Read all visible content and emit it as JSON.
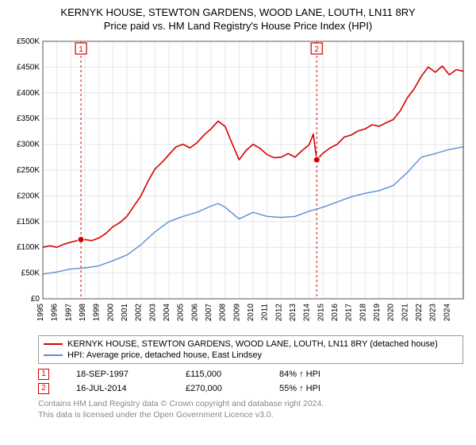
{
  "title_line1": "KERNYK HOUSE, STEWTON GARDENS, WOOD LANE, LOUTH, LN11 8RY",
  "title_line2": "Price paid vs. HM Land Registry's House Price Index (HPI)",
  "chart": {
    "type": "line",
    "plot_bg": "#ffffff",
    "grid_color": "#e6e6e6",
    "axis_color": "#333333",
    "tick_font_size": 10,
    "x": {
      "min": 1995,
      "max": 2025,
      "ticks": [
        1995,
        1996,
        1997,
        1998,
        1999,
        2000,
        2001,
        2002,
        2003,
        2004,
        2005,
        2006,
        2007,
        2008,
        2009,
        2010,
        2011,
        2012,
        2013,
        2014,
        2015,
        2016,
        2017,
        2018,
        2019,
        2020,
        2021,
        2022,
        2023,
        2024
      ],
      "label_rotation": -90
    },
    "y": {
      "min": 0,
      "max": 500,
      "ticks": [
        0,
        50,
        100,
        150,
        200,
        250,
        300,
        350,
        400,
        450,
        500
      ],
      "tick_labels": [
        "£0",
        "£50K",
        "£100K",
        "£150K",
        "£200K",
        "£250K",
        "£300K",
        "£350K",
        "£400K",
        "£450K",
        "£500K"
      ]
    },
    "annotations": [
      {
        "n": "1",
        "year": 1997.72,
        "color": "#d40000",
        "line_dash": "3,3"
      },
      {
        "n": "2",
        "year": 2014.54,
        "color": "#d40000",
        "line_dash": "3,3"
      }
    ],
    "series": [
      {
        "id": "property",
        "label": "KERNYK HOUSE, STEWTON GARDENS, WOOD LANE, LOUTH, LN11 8RY (detached house)",
        "color": "#d40000",
        "width": 1.6,
        "points": [
          [
            1995.0,
            100
          ],
          [
            1995.5,
            103
          ],
          [
            1996.0,
            100
          ],
          [
            1996.5,
            106
          ],
          [
            1997.0,
            110
          ],
          [
            1997.72,
            115
          ],
          [
            1998.0,
            115
          ],
          [
            1998.5,
            113
          ],
          [
            1999.0,
            118
          ],
          [
            1999.5,
            127
          ],
          [
            2000.0,
            140
          ],
          [
            2000.5,
            148
          ],
          [
            2001.0,
            160
          ],
          [
            2001.5,
            180
          ],
          [
            2002.0,
            200
          ],
          [
            2002.5,
            228
          ],
          [
            2003.0,
            252
          ],
          [
            2003.5,
            265
          ],
          [
            2004.0,
            280
          ],
          [
            2004.5,
            295
          ],
          [
            2005.0,
            300
          ],
          [
            2005.5,
            293
          ],
          [
            2006.0,
            303
          ],
          [
            2006.5,
            318
          ],
          [
            2007.0,
            330
          ],
          [
            2007.5,
            345
          ],
          [
            2008.0,
            335
          ],
          [
            2008.5,
            302
          ],
          [
            2009.0,
            270
          ],
          [
            2009.5,
            288
          ],
          [
            2010.0,
            300
          ],
          [
            2010.5,
            292
          ],
          [
            2011.0,
            280
          ],
          [
            2011.5,
            274
          ],
          [
            2012.0,
            275
          ],
          [
            2012.5,
            282
          ],
          [
            2013.0,
            275
          ],
          [
            2013.5,
            288
          ],
          [
            2014.0,
            299
          ],
          [
            2014.3,
            320
          ],
          [
            2014.54,
            270
          ],
          [
            2015.0,
            283
          ],
          [
            2015.5,
            293
          ],
          [
            2016.0,
            300
          ],
          [
            2016.5,
            314
          ],
          [
            2017.0,
            318
          ],
          [
            2017.5,
            326
          ],
          [
            2018.0,
            330
          ],
          [
            2018.5,
            338
          ],
          [
            2019.0,
            335
          ],
          [
            2019.5,
            342
          ],
          [
            2020.0,
            348
          ],
          [
            2020.5,
            365
          ],
          [
            2021.0,
            390
          ],
          [
            2021.5,
            408
          ],
          [
            2022.0,
            432
          ],
          [
            2022.5,
            450
          ],
          [
            2023.0,
            440
          ],
          [
            2023.5,
            452
          ],
          [
            2024.0,
            435
          ],
          [
            2024.5,
            445
          ],
          [
            2025.0,
            442
          ]
        ]
      },
      {
        "id": "hpi",
        "label": "HPI: Average price, detached house, East Lindsey",
        "color": "#5a8fd6",
        "width": 1.4,
        "points": [
          [
            1995.0,
            48
          ],
          [
            1996.0,
            52
          ],
          [
            1997.0,
            58
          ],
          [
            1998.0,
            60
          ],
          [
            1999.0,
            64
          ],
          [
            2000.0,
            74
          ],
          [
            2001.0,
            85
          ],
          [
            2002.0,
            105
          ],
          [
            2003.0,
            130
          ],
          [
            2004.0,
            150
          ],
          [
            2005.0,
            160
          ],
          [
            2006.0,
            168
          ],
          [
            2007.0,
            180
          ],
          [
            2007.5,
            185
          ],
          [
            2008.0,
            178
          ],
          [
            2009.0,
            155
          ],
          [
            2010.0,
            168
          ],
          [
            2011.0,
            160
          ],
          [
            2012.0,
            158
          ],
          [
            2013.0,
            160
          ],
          [
            2014.0,
            170
          ],
          [
            2015.0,
            178
          ],
          [
            2016.0,
            188
          ],
          [
            2017.0,
            198
          ],
          [
            2018.0,
            205
          ],
          [
            2019.0,
            210
          ],
          [
            2020.0,
            220
          ],
          [
            2021.0,
            245
          ],
          [
            2022.0,
            275
          ],
          [
            2023.0,
            282
          ],
          [
            2024.0,
            290
          ],
          [
            2025.0,
            295
          ]
        ]
      }
    ],
    "markers": [
      {
        "series": "property",
        "year": 1997.72,
        "value": 115,
        "color": "#d40000"
      },
      {
        "series": "property",
        "year": 2014.54,
        "value": 270,
        "color": "#d40000"
      }
    ]
  },
  "legend": {
    "border_color": "#999999",
    "items": [
      {
        "color": "#d40000",
        "label": "KERNYK HOUSE, STEWTON GARDENS, WOOD LANE, LOUTH, LN11 8RY (detached house)"
      },
      {
        "color": "#5a8fd6",
        "label": "HPI: Average price, detached house, East Lindsey"
      }
    ]
  },
  "transactions": [
    {
      "n": "1",
      "color": "#d40000",
      "date": "18-SEP-1997",
      "price": "£115,000",
      "pct": "84% ↑ HPI"
    },
    {
      "n": "2",
      "color": "#d40000",
      "date": "16-JUL-2014",
      "price": "£270,000",
      "pct": "55% ↑ HPI"
    }
  ],
  "footnote_line1": "Contains HM Land Registry data © Crown copyright and database right 2024.",
  "footnote_line2": "This data is licensed under the Open Government Licence v3.0."
}
